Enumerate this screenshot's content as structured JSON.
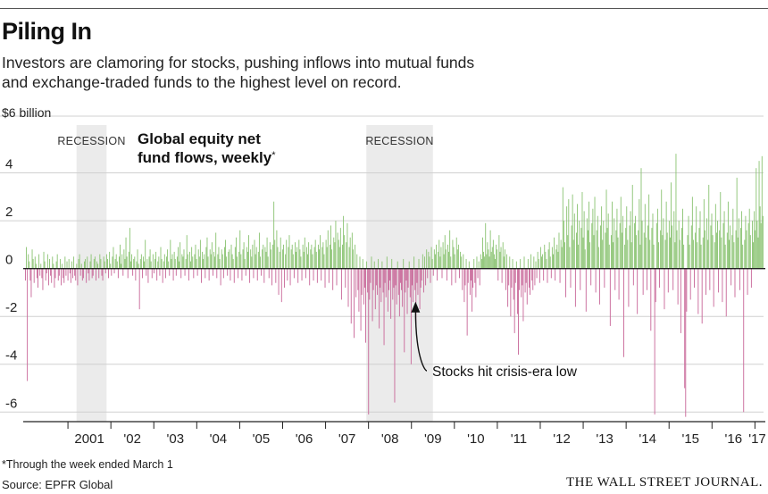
{
  "header": {
    "title": "Piling In",
    "subtitle": "Investors are clamoring for stocks, pushing inflows into mutual funds and exchange-traded funds to the highest level on record."
  },
  "footer": {
    "note": "*Through the week ended March 1",
    "source": "Source: EPFR Global",
    "publisher": "THE WALL STREET JOURNAL."
  },
  "colors": {
    "positive": "#8cc474",
    "negative": "#c9699a",
    "recession": "#ebebeb",
    "axis": "#222222"
  },
  "chart_data": {
    "type": "bar",
    "title": "Global equity net fund flows, weekly",
    "title_footnote_mark": "*",
    "unit_label": "$6 billion",
    "ylim": [
      -6.4,
      6
    ],
    "xlim": [
      2000.0,
      2017.2
    ],
    "y_ticks": [
      {
        "value": 4,
        "label": "4"
      },
      {
        "value": 2,
        "label": "2"
      },
      {
        "value": 0,
        "label": "0"
      },
      {
        "value": -2,
        "label": "-2"
      },
      {
        "value": -4,
        "label": "-4"
      },
      {
        "value": -6,
        "label": "-6"
      }
    ],
    "x_ticks": [
      {
        "year": 2001,
        "label": "2001"
      },
      {
        "year": 2002,
        "label": "'02"
      },
      {
        "year": 2003,
        "label": "'03"
      },
      {
        "year": 2004,
        "label": "'04"
      },
      {
        "year": 2005,
        "label": "'05"
      },
      {
        "year": 2006,
        "label": "'06"
      },
      {
        "year": 2007,
        "label": "'07"
      },
      {
        "year": 2008,
        "label": "'08"
      },
      {
        "year": 2009,
        "label": "'09"
      },
      {
        "year": 2010,
        "label": "'10"
      },
      {
        "year": 2011,
        "label": "'11"
      },
      {
        "year": 2012,
        "label": "'12"
      },
      {
        "year": 2013,
        "label": "'13"
      },
      {
        "year": 2014,
        "label": "'14"
      },
      {
        "year": 2015,
        "label": "'15"
      },
      {
        "year": 2016,
        "label": "'16"
      },
      {
        "year": 2017,
        "label": "'17"
      }
    ],
    "recessions": [
      {
        "label": "RECESSION",
        "start": 2001.2,
        "end": 2001.9
      },
      {
        "label": "RECESSION",
        "start": 2007.95,
        "end": 2009.5
      }
    ],
    "annotation": {
      "text": "Stocks hit crisis-era low",
      "x": 2009.2,
      "y": -1.2
    },
    "series": [
      {
        "key": "weekly_flows",
        "values": [
          -0.5,
          0.9,
          -4.7,
          0.6,
          0.3,
          -0.5,
          -1.2,
          0.8,
          0.4,
          -0.6,
          0.5,
          0.2,
          -0.4,
          -0.8,
          0.6,
          -0.3,
          0.2,
          -0.4,
          -0.9,
          0.7,
          0.3,
          -0.5,
          -0.2,
          0.6,
          -0.7,
          0.4,
          -0.3,
          -0.6,
          0.5,
          0.2,
          -0.8,
          -0.4,
          0.3,
          0.6,
          -0.5,
          -0.3,
          0.4,
          -0.7,
          0.2,
          -0.4,
          -0.6,
          0.5,
          -0.3,
          0.3,
          -0.5,
          0.4,
          -0.2,
          -0.6,
          0.3,
          -0.4,
          0.5,
          -0.3,
          -0.5,
          0.2,
          -0.7,
          0.4,
          0.6,
          -0.3,
          0.2,
          -0.5,
          -0.4,
          0.3,
          0.4,
          -0.6,
          0.5,
          -0.2,
          -0.5,
          0.3,
          0.6,
          -0.4,
          -0.3,
          0.4,
          0.5,
          -0.5,
          0.3,
          0.2,
          -0.4,
          0.6,
          0.4,
          -0.3,
          -0.5,
          0.5,
          0.3,
          -0.2,
          0.6,
          0.4,
          -0.4,
          0.7,
          0.2,
          -0.3,
          0.5,
          0.9,
          -0.2,
          0.4,
          0.6,
          0.3,
          -0.4,
          0.5,
          1.0,
          0.2,
          0.6,
          -0.3,
          0.8,
          0.4,
          1.3,
          0.5,
          -0.4,
          0.7,
          1.7,
          0.3,
          0.6,
          -0.3,
          0.4,
          0.5,
          -0.5,
          0.3,
          0.8,
          0.2,
          -1.7,
          0.4,
          0.6,
          -0.4,
          0.5,
          0.3,
          1.2,
          -0.3,
          0.4,
          -0.6,
          0.5,
          0.8,
          0.3,
          -0.4,
          0.6,
          -0.2,
          0.4,
          0.7,
          -0.5,
          0.3,
          0.5,
          -0.3,
          0.9,
          0.4,
          -0.6,
          0.3,
          0.6,
          -0.4,
          0.5,
          0.8,
          0.3,
          -0.3,
          1.2,
          0.4,
          0.6,
          -0.5,
          0.7,
          0.4,
          -0.3,
          0.5,
          0.9,
          0.3,
          1.1,
          -0.4,
          0.6,
          0.5,
          0.8,
          -0.3,
          0.4,
          1.4,
          0.6,
          -0.5,
          0.7,
          0.3,
          0.9,
          0.5,
          -0.4,
          0.6,
          1.0,
          0.4,
          -0.3,
          0.8,
          0.5,
          1.2,
          -0.6,
          0.7,
          0.4,
          0.6,
          -0.4,
          0.9,
          1.3,
          0.5,
          -0.5,
          0.8,
          0.6,
          1.1,
          -0.3,
          0.7,
          0.5,
          1.5,
          -0.4,
          0.6,
          0.9,
          0.4,
          -0.7,
          0.8,
          0.6,
          -0.4,
          0.9,
          1.2,
          0.5,
          -0.3,
          0.7,
          0.8,
          -0.5,
          1.0,
          0.6,
          0.4,
          -0.6,
          0.9,
          1.3,
          0.5,
          -0.4,
          0.7,
          1.6,
          0.6,
          -0.5,
          0.8,
          1.1,
          0.4,
          -0.3,
          0.9,
          0.7,
          1.4,
          -0.6,
          0.8,
          0.5,
          1.0,
          -0.4,
          1.2,
          0.6,
          0.9,
          -0.5,
          0.7,
          1.5,
          0.5,
          -0.3,
          0.8,
          1.0,
          -0.6,
          0.9,
          0.7,
          1.3,
          0.5,
          -0.4,
          1.1,
          0.8,
          -0.7,
          1.0,
          2.8,
          1.2,
          -0.6,
          1.6,
          0.9,
          -1.1,
          0.7,
          1.3,
          -1.4,
          0.8,
          1.0,
          -0.8,
          0.6,
          1.2,
          -0.5,
          0.9,
          1.4,
          -0.7,
          0.8,
          1.0,
          0.6,
          -0.4,
          1.1,
          0.7,
          0.9,
          -0.6,
          1.2,
          0.8,
          0.5,
          -0.5,
          1.0,
          0.7,
          1.3,
          -0.4,
          0.9,
          0.6,
          1.1,
          -0.7,
          0.8,
          1.0,
          0.6,
          -0.5,
          0.9,
          1.2,
          0.7,
          -0.6,
          1.0,
          0.8,
          1.4,
          -0.5,
          0.9,
          1.1,
          0.6,
          -0.8,
          1.2,
          0.9,
          1.6,
          -0.6,
          1.0,
          1.8,
          0.8,
          -0.9,
          1.3,
          1.1,
          2.0,
          -0.7,
          1.5,
          1.2,
          0.9,
          1.7,
          -1.3,
          1.0,
          2.2,
          1.4,
          -0.8,
          1.1,
          1.9,
          -1.6,
          0.9,
          1.3,
          -2.3,
          1.5,
          0.8,
          -2.9,
          1.0,
          -1.2,
          0.6,
          -0.9,
          -1.8,
          0.5,
          -2.6,
          -1.1,
          0.4,
          -1.5,
          -0.8,
          -3.1,
          0.3,
          -1.0,
          -6.1,
          -1.3,
          -0.6,
          0.5,
          -2.2,
          -0.9,
          0.3,
          -1.7,
          -0.7,
          -1.1,
          0.4,
          -2.5,
          -0.8,
          -1.4,
          0.3,
          -1.0,
          -3.2,
          -0.6,
          -1.2,
          0.5,
          -1.8,
          -0.9,
          -0.5,
          -2.1,
          0.4,
          -1.3,
          -0.8,
          -5.6,
          -0.7,
          -1.5,
          0.3,
          -1.1,
          -2.0,
          -0.6,
          -0.9,
          -1.6,
          0.4,
          -3.5,
          -1.0,
          -0.5,
          -1.9,
          -0.8,
          0.3,
          -1.2,
          -4.0,
          -0.7,
          -1.4,
          0.5,
          -0.9,
          -2.3,
          -0.6,
          -1.1,
          0.4,
          -1.7,
          -0.8,
          -0.5,
          0.6,
          -1.0,
          0.5,
          -0.7,
          0.8,
          -0.4,
          0.7,
          0.5,
          -0.6,
          0.9,
          0.4,
          -0.3,
          0.8,
          0.6,
          1.0,
          -0.5,
          0.7,
          1.2,
          0.5,
          0.9,
          -0.4,
          1.1,
          0.6,
          1.4,
          0.8,
          -0.5,
          1.0,
          0.7,
          1.6,
          0.5,
          -0.7,
          1.2,
          0.9,
          0.6,
          -0.6,
          1.3,
          0.8,
          1.0,
          -0.4,
          0.7,
          0.5,
          -0.9,
          0.6,
          -1.4,
          -0.7,
          0.4,
          -2.8,
          -0.6,
          0.3,
          -1.1,
          -0.5,
          -1.8,
          -0.8,
          0.4,
          -0.6,
          -1.2,
          0.5,
          -0.4,
          0.3,
          -0.7,
          0.6,
          0.4,
          1.3,
          0.7,
          0.5,
          1.9,
          0.6,
          1.1,
          0.8,
          0.5,
          1.6,
          0.7,
          0.9,
          1.2,
          0.6,
          0.4,
          1.0,
          0.8,
          -0.5,
          1.4,
          0.7,
          0.9,
          -0.6,
          1.1,
          0.5,
          0.8,
          -0.9,
          0.6,
          -1.6,
          -0.7,
          0.5,
          -2.0,
          -0.8,
          0.4,
          -1.3,
          -2.7,
          -0.6,
          0.3,
          -1.9,
          -3.6,
          -0.9,
          0.4,
          -1.2,
          -0.7,
          -2.2,
          0.5,
          -1.0,
          -0.6,
          -1.5,
          0.4,
          -0.8,
          -1.1,
          0.6,
          -0.5,
          -0.9,
          0.5,
          -0.7,
          0.3,
          -0.4,
          0.7,
          0.4,
          -0.6,
          0.9,
          0.5,
          0.6,
          -0.5,
          1.0,
          0.7,
          0.4,
          -0.6,
          0.8,
          1.1,
          0.5,
          -0.4,
          0.9,
          0.6,
          1.3,
          -0.5,
          0.8,
          1.0,
          0.7,
          1.5,
          -0.6,
          1.2,
          0.9,
          3.4,
          2.0,
          1.1,
          -1.2,
          2.6,
          1.4,
          2.9,
          0.9,
          -0.8,
          1.8,
          3.1,
          1.2,
          2.3,
          -1.6,
          1.5,
          2.7,
          1.0,
          2.0,
          -0.9,
          1.7,
          3.2,
          1.3,
          2.4,
          0.8,
          -1.8,
          2.1,
          1.6,
          2.8,
          1.1,
          -0.7,
          1.9,
          2.5,
          1.4,
          3.0,
          -1.0,
          1.6,
          2.2,
          0.9,
          -1.5,
          1.8,
          2.6,
          1.2,
          2.0,
          -0.8,
          1.5,
          3.3,
          1.7,
          2.3,
          1.0,
          -2.4,
          1.4,
          2.8,
          1.1,
          2.1,
          -0.9,
          1.6,
          2.5,
          1.3,
          -1.3,
          1.9,
          3.0,
          1.5,
          2.2,
          -3.7,
          1.0,
          1.7,
          2.6,
          1.2,
          -1.6,
          1.8,
          2.4,
          1.1,
          3.5,
          -0.7,
          1.9,
          2.2,
          1.4,
          -1.9,
          1.6,
          2.9,
          1.0,
          4.2,
          2.0,
          -1.1,
          1.5,
          2.7,
          1.3,
          -0.9,
          1.8,
          3.1,
          1.2,
          -2.6,
          1.7,
          2.3,
          1.0,
          -6.1,
          -1.4,
          1.9,
          2.5,
          1.1,
          -0.8,
          1.6,
          3.3,
          1.4,
          2.1,
          -1.7,
          1.2,
          2.8,
          1.5,
          -1.0,
          2.0,
          1.3,
          3.6,
          1.8,
          -0.9,
          2.4,
          1.1,
          4.8,
          1.6,
          -1.5,
          2.0,
          1.2,
          -2.7,
          1.7,
          2.5,
          1.0,
          -5.0,
          -6.2,
          -1.8,
          1.4,
          2.2,
          1.0,
          -1.3,
          1.8,
          3.0,
          1.2,
          -0.8,
          1.5,
          2.6,
          1.1,
          -1.9,
          1.7,
          2.4,
          1.0,
          -2.3,
          1.3,
          2.9,
          1.6,
          -1.1,
          2.1,
          1.2,
          3.5,
          -0.9,
          1.8,
          2.3,
          1.4,
          -1.6,
          1.1,
          2.7,
          1.5,
          2.0,
          -1.0,
          1.6,
          3.2,
          1.3,
          -1.4,
          1.9,
          2.4,
          1.0,
          -2.0,
          1.5,
          2.8,
          1.2,
          1.8,
          -0.7,
          1.4,
          2.5,
          1.1,
          -1.2,
          1.6,
          3.8,
          1.3,
          2.1,
          -0.9,
          1.7,
          2.4,
          1.0,
          -6.0,
          1.2,
          2.2,
          1.6,
          -1.1,
          1.9,
          2.5,
          1.4,
          -0.8,
          2.0,
          1.1,
          2.4,
          1.6,
          4.2,
          2.0,
          1.3,
          4.5,
          2.6,
          1.9,
          4.7,
          2.2
        ]
      }
    ]
  }
}
